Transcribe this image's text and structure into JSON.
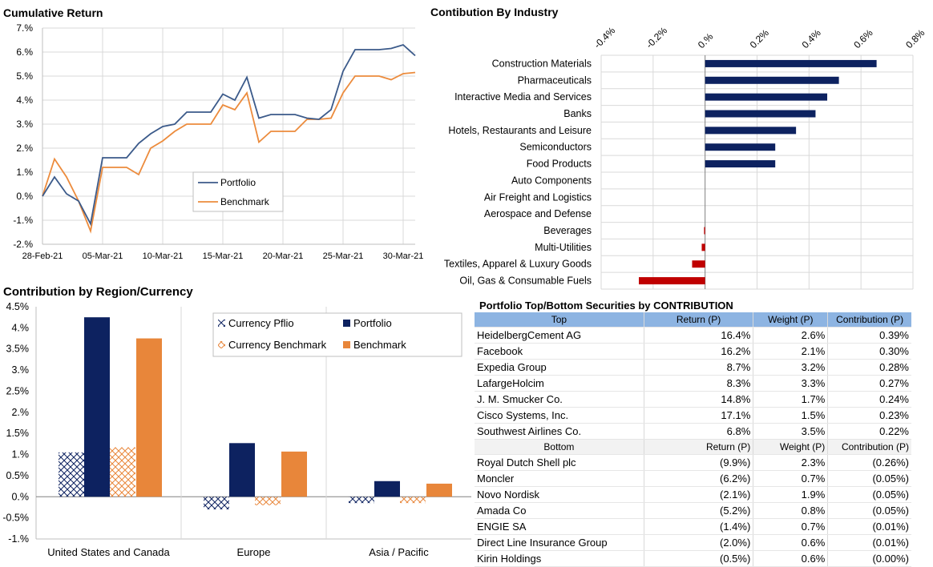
{
  "titles": {
    "cumulative": "Cumulative Return",
    "industry": "Contibution By Industry",
    "region": "Contribution by Region/Currency",
    "securities": "Portfolio Top/Bottom Securities by CONTRIBUTION"
  },
  "colors": {
    "portfolio": "#3b5a8a",
    "benchmark": "#ec8b3c",
    "navy": "#0d2260",
    "orange": "#e8863a",
    "red": "#c00000",
    "header": "#8db4e2"
  },
  "chart_data": [
    {
      "type": "line",
      "title": "Cumulative Return",
      "yticks": [
        "7.%",
        "6.%",
        "5.%",
        "4.%",
        "3.%",
        "2.%",
        "1.%",
        "0.%",
        "-1.%",
        "-2.%"
      ],
      "ylim": [
        -2,
        7
      ],
      "xtick_labels": [
        "28-Feb-21",
        "05-Mar-21",
        "10-Mar-21",
        "15-Mar-21",
        "20-Mar-21",
        "25-Mar-21",
        "30-Mar-21"
      ],
      "xtick_positions": [
        0,
        5,
        10,
        15,
        20,
        25,
        30
      ],
      "xlim": [
        0,
        31
      ],
      "legend_position": "center",
      "series": [
        {
          "name": "Portfolio",
          "x": [
            0,
            1,
            2,
            3,
            4,
            5,
            6,
            7,
            8,
            9,
            10,
            11,
            12,
            13,
            14,
            15,
            16,
            17,
            18,
            19,
            20,
            21,
            22,
            23,
            24,
            25,
            26,
            27,
            28,
            29,
            30,
            31
          ],
          "values": [
            0,
            0.8,
            0.1,
            -0.2,
            -1.15,
            1.6,
            1.6,
            1.6,
            2.2,
            2.6,
            2.9,
            3.0,
            3.5,
            3.5,
            3.5,
            4.25,
            4.0,
            4.95,
            3.25,
            3.4,
            3.4,
            3.4,
            3.25,
            3.2,
            3.6,
            5.2,
            6.1,
            6.1,
            6.1,
            6.15,
            6.3,
            5.85
          ]
        },
        {
          "name": "Benchmark",
          "x": [
            0,
            1,
            2,
            3,
            4,
            5,
            6,
            7,
            8,
            9,
            10,
            11,
            12,
            13,
            14,
            15,
            16,
            17,
            18,
            19,
            20,
            21,
            22,
            23,
            24,
            25,
            26,
            27,
            28,
            29,
            30,
            31
          ],
          "values": [
            0,
            1.55,
            0.8,
            -0.2,
            -1.45,
            1.2,
            1.2,
            1.2,
            0.9,
            2.0,
            2.3,
            2.7,
            3.0,
            3.0,
            3.0,
            3.8,
            3.6,
            4.3,
            2.25,
            2.7,
            2.7,
            2.7,
            3.2,
            3.2,
            3.25,
            4.3,
            5.0,
            5.0,
            5.0,
            4.85,
            5.1,
            5.15
          ]
        }
      ]
    },
    {
      "type": "bar",
      "title": "Contibution By Industry",
      "orientation": "horizontal",
      "xticks": [
        "-0.4%",
        "-0.2%",
        "0.%",
        "0.2%",
        "0.4%",
        "0.6%",
        "0.8%"
      ],
      "xlim": [
        -0.4,
        0.8
      ],
      "categories": [
        "Construction Materials",
        "Pharmaceuticals",
        "Interactive Media and Services",
        "Banks",
        "Hotels, Restaurants and Leisure",
        "Semiconductors",
        "Food Products",
        "Auto Components",
        "Air Freight and Logistics",
        "Aerospace and Defense",
        "Beverages",
        "Multi-Utilities",
        "Textiles, Apparel & Luxury Goods",
        "Oil, Gas & Consumable Fuels"
      ],
      "values": [
        0.66,
        0.515,
        0.47,
        0.425,
        0.35,
        0.27,
        0.27,
        0,
        0,
        0,
        -0.004,
        -0.013,
        -0.05,
        -0.255
      ]
    },
    {
      "type": "bar",
      "title": "Contribution by Region/Currency",
      "yticks": [
        "4.5%",
        "4.%",
        "3.5%",
        "3.%",
        "2.5%",
        "2.%",
        "1.5%",
        "1.%",
        "0.5%",
        "0.%",
        "-0.5%",
        "-1.%"
      ],
      "ylim": [
        -1,
        4.5
      ],
      "categories": [
        "United States and Canada",
        "Europe",
        "Asia / Pacific"
      ],
      "legend_position": "top-right",
      "series": [
        {
          "name": "Currency Pflio",
          "values": [
            1.05,
            -0.3,
            -0.15
          ]
        },
        {
          "name": "Portfolio",
          "values": [
            4.25,
            1.27,
            0.37
          ]
        },
        {
          "name": "Currency Benchmark",
          "values": [
            1.17,
            -0.2,
            -0.15
          ]
        },
        {
          "name": "Benchmark",
          "values": [
            3.75,
            1.07,
            0.31
          ]
        }
      ]
    }
  ],
  "table": {
    "top_header": [
      "Top",
      "Return (P)",
      "Weight (P)",
      "Contribution (P)"
    ],
    "top_rows": [
      [
        "HeidelbergCement AG",
        "16.4%",
        "2.6%",
        "0.39%"
      ],
      [
        "Facebook",
        "16.2%",
        "2.1%",
        "0.30%"
      ],
      [
        "Expedia Group",
        "8.7%",
        "3.2%",
        "0.28%"
      ],
      [
        "LafargeHolcim",
        "8.3%",
        "3.3%",
        "0.27%"
      ],
      [
        " J. M. Smucker Co.",
        "14.8%",
        "1.7%",
        "0.24%"
      ],
      [
        "Cisco Systems, Inc.",
        "17.1%",
        "1.5%",
        "0.23%"
      ],
      [
        "Southwest Airlines Co.",
        "6.8%",
        "3.5%",
        "0.22%"
      ]
    ],
    "bottom_header": [
      "Bottom",
      "Return (P)",
      "Weight (P)",
      "Contribution (P)"
    ],
    "bottom_rows": [
      [
        "Royal Dutch Shell plc",
        "(9.9%)",
        "2.3%",
        "(0.26%)"
      ],
      [
        "Moncler",
        "(6.2%)",
        "0.7%",
        "(0.05%)"
      ],
      [
        "Novo Nordisk",
        "(2.1%)",
        "1.9%",
        "(0.05%)"
      ],
      [
        "Amada Co",
        "(5.2%)",
        "0.8%",
        "(0.05%)"
      ],
      [
        "ENGIE SA",
        "(1.4%)",
        "0.7%",
        "(0.01%)"
      ],
      [
        "Direct Line Insurance Group",
        "(2.0%)",
        "0.6%",
        "(0.01%)"
      ],
      [
        "Kirin Holdings",
        "(0.5%)",
        "0.6%",
        "(0.00%)"
      ]
    ]
  }
}
